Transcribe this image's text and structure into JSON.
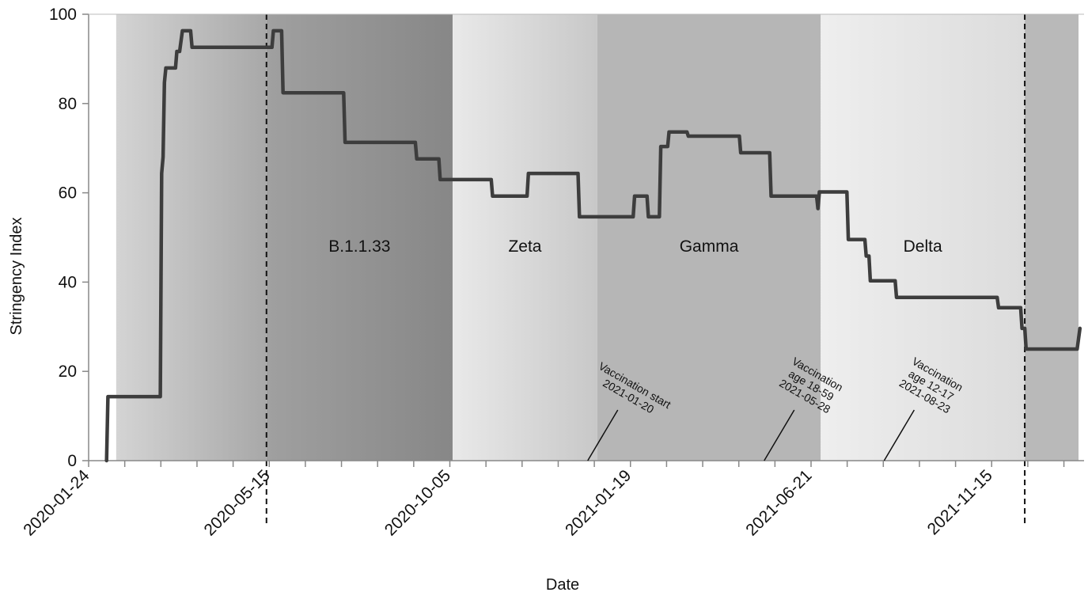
{
  "chart_data": {
    "type": "line",
    "title": "",
    "xlabel": "Date",
    "ylabel": "Stringency Index",
    "ylim": [
      0,
      100
    ],
    "xlim": [
      "2020-01-24",
      "2022-01-15"
    ],
    "y_ticks": [
      0,
      20,
      40,
      60,
      80,
      100
    ],
    "x_tick_labels": [
      "2020-01-24",
      "2020-05-15",
      "2020-10-05",
      "2021-01-19",
      "2021-06-21",
      "2021-11-15"
    ],
    "grid": false,
    "series": [
      {
        "color": "#3d3d3d",
        "points": [
          [
            "2020-02-06",
            0
          ],
          [
            "2020-02-07",
            14.35
          ],
          [
            "2020-03-16",
            14.35
          ],
          [
            "2020-03-17",
            64.35
          ],
          [
            "2020-03-18",
            68.05
          ],
          [
            "2020-03-19",
            84.72
          ],
          [
            "2020-03-20",
            87.96
          ],
          [
            "2020-03-27",
            87.96
          ],
          [
            "2020-03-28",
            91.67
          ],
          [
            "2020-03-30",
            91.67
          ],
          [
            "2020-04-01",
            96.3
          ],
          [
            "2020-04-07",
            96.3
          ],
          [
            "2020-04-08",
            92.59
          ],
          [
            "2020-06-05",
            92.59
          ],
          [
            "2020-06-06",
            96.3
          ],
          [
            "2020-06-12",
            96.3
          ],
          [
            "2020-06-13",
            82.41
          ],
          [
            "2020-07-27",
            82.41
          ],
          [
            "2020-07-28",
            71.3
          ],
          [
            "2020-09-17",
            71.3
          ],
          [
            "2020-09-18",
            67.59
          ],
          [
            "2020-10-04",
            67.59
          ],
          [
            "2020-10-05",
            62.96
          ],
          [
            "2020-11-11",
            62.96
          ],
          [
            "2020-11-12",
            59.26
          ],
          [
            "2020-12-07",
            59.26
          ],
          [
            "2020-12-08",
            64.35
          ],
          [
            "2021-01-13",
            64.35
          ],
          [
            "2021-01-14",
            54.63
          ],
          [
            "2021-02-22",
            54.63
          ],
          [
            "2021-02-23",
            59.26
          ],
          [
            "2021-03-04",
            59.26
          ],
          [
            "2021-03-05",
            54.63
          ],
          [
            "2021-03-13",
            54.63
          ],
          [
            "2021-03-14",
            70.37
          ],
          [
            "2021-03-19",
            70.37
          ],
          [
            "2021-03-20",
            73.61
          ],
          [
            "2021-04-02",
            73.61
          ],
          [
            "2021-04-03",
            72.69
          ],
          [
            "2021-05-10",
            72.69
          ],
          [
            "2021-05-11",
            68.98
          ],
          [
            "2021-06-01",
            68.98
          ],
          [
            "2021-06-02",
            59.26
          ],
          [
            "2021-07-05",
            59.26
          ],
          [
            "2021-07-06",
            56.48
          ],
          [
            "2021-07-07",
            60.19
          ],
          [
            "2021-07-27",
            60.19
          ],
          [
            "2021-07-28",
            49.54
          ],
          [
            "2021-08-09",
            49.54
          ],
          [
            "2021-08-10",
            45.83
          ],
          [
            "2021-08-12",
            45.83
          ],
          [
            "2021-08-13",
            40.28
          ],
          [
            "2021-08-31",
            40.28
          ],
          [
            "2021-09-01",
            36.57
          ],
          [
            "2021-11-13",
            36.57
          ],
          [
            "2021-11-14",
            34.26
          ],
          [
            "2021-11-30",
            34.26
          ],
          [
            "2021-12-01",
            29.63
          ],
          [
            "2021-12-03",
            29.63
          ],
          [
            "2021-12-04",
            25.0
          ],
          [
            "2022-01-10",
            25.0
          ],
          [
            "2022-01-12",
            29.63
          ]
        ]
      }
    ],
    "periods": [
      {
        "label": "",
        "start": "2020-02-13",
        "end": "2020-06-01",
        "color_from": "#d4d4d4",
        "color_to": "#a8a8a8"
      },
      {
        "label": "B.1.1.33",
        "start": "2020-06-01",
        "end": "2020-10-14",
        "color_from": "#a0a0a0",
        "color_to": "#878787"
      },
      {
        "label": "Zeta",
        "start": "2020-10-14",
        "end": "2021-01-27",
        "color_from": "#e9e9e9",
        "color_to": "#c8c8c8"
      },
      {
        "label": "Gamma",
        "start": "2021-01-27",
        "end": "2021-07-08",
        "color_from": "#b6b6b6",
        "color_to": "#b6b6b6"
      },
      {
        "label": "Delta",
        "start": "2021-07-08",
        "end": "2021-12-03",
        "color_from": "#eeeeee",
        "color_to": "#dcdcdc"
      },
      {
        "label": "",
        "start": "2021-12-03",
        "end": "2022-01-11",
        "color_from": "#b9b9b9",
        "color_to": "#b9b9b9"
      }
    ],
    "vlines": [
      "2020-06-01",
      "2021-12-03"
    ],
    "annotations": [
      {
        "date": "2021-01-20",
        "lines": [
          "Vaccination start",
          "2021-01-20"
        ]
      },
      {
        "date": "2021-05-28",
        "lines": [
          "Vaccination",
          "age 18-59",
          "2021-05-28"
        ]
      },
      {
        "date": "2021-08-23",
        "lines": [
          "Vaccination",
          "age 12-17",
          "2021-08-23"
        ]
      }
    ]
  }
}
